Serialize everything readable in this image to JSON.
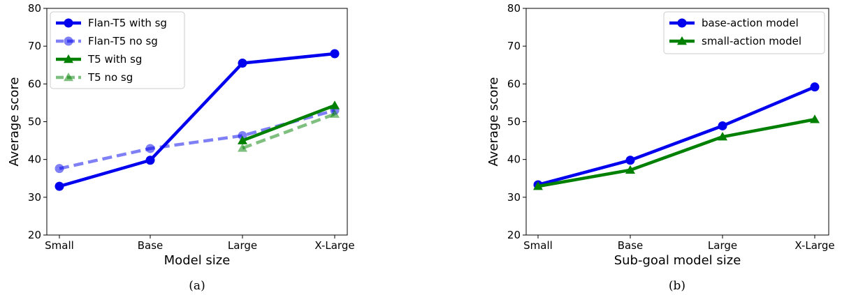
{
  "chart_data": [
    {
      "type": "line",
      "categories": [
        "Small",
        "Base",
        "Large",
        "X-Large"
      ],
      "xlabel": "Model size",
      "ylabel": "Average score",
      "ylim": [
        20,
        80
      ],
      "yticks": [
        "20",
        "30",
        "40",
        "50",
        "60",
        "70",
        "80"
      ],
      "caption": "(a)",
      "legend_position": "top-left",
      "series": [
        {
          "name": "Flan-T5 with sg",
          "values": [
            32.9,
            39.8,
            65.5,
            68.0
          ],
          "color": "#0000ee",
          "marker": "circle",
          "dashed": false,
          "alpha": 1
        },
        {
          "name": "Flan-T5 no sg",
          "values": [
            37.6,
            42.9,
            46.3,
            53.0
          ],
          "color": "#0000ee",
          "marker": "circle",
          "dashed": true,
          "alpha": 0.5
        },
        {
          "name": "T5 with sg",
          "values": [
            null,
            null,
            45.0,
            54.3
          ],
          "color": "#008000",
          "marker": "triangle",
          "dashed": false,
          "alpha": 1
        },
        {
          "name": "T5 no sg",
          "values": [
            null,
            null,
            43.0,
            52.0
          ],
          "color": "#008000",
          "marker": "triangle",
          "dashed": true,
          "alpha": 0.5
        }
      ]
    },
    {
      "type": "line",
      "categories": [
        "Small",
        "Base",
        "Large",
        "X-Large"
      ],
      "xlabel": "Sub-goal model size",
      "ylabel": "Average score",
      "ylim": [
        20,
        80
      ],
      "yticks": [
        "20",
        "30",
        "40",
        "50",
        "60",
        "70",
        "80"
      ],
      "caption": "(b)",
      "legend_position": "top-right",
      "series": [
        {
          "name": "base-action model",
          "values": [
            33.3,
            39.8,
            48.9,
            59.2
          ],
          "color": "#0000ee",
          "marker": "circle",
          "dashed": false,
          "alpha": 1
        },
        {
          "name": "small-action model",
          "values": [
            32.9,
            37.2,
            46.0,
            50.6
          ],
          "color": "#008000",
          "marker": "triangle",
          "dashed": false,
          "alpha": 1
        }
      ]
    }
  ]
}
